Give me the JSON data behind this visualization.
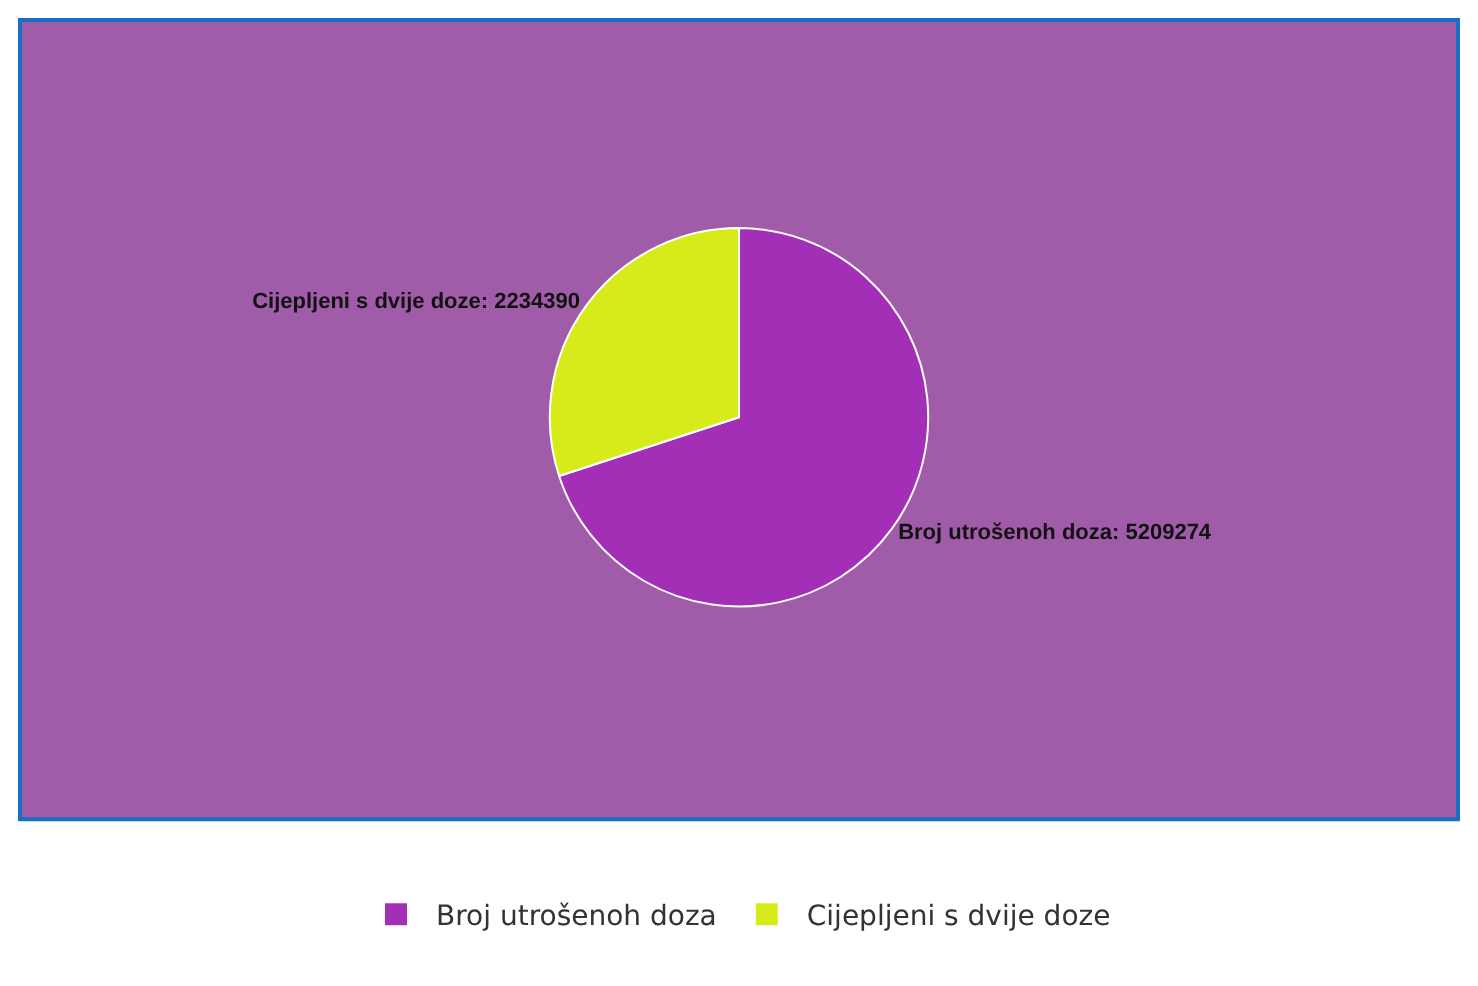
{
  "chart_data": {
    "type": "pie",
    "categories": [
      "Broj utrošenoh doza",
      "Cijepljeni s dvije doze"
    ],
    "values": [
      5209274,
      2234390
    ],
    "colors": [
      "#a22fb5",
      "#d7eb1a"
    ],
    "value_labels": [
      "Broj utrošenoh doza: 5209274",
      "Cijepljeni s dvije doze: 2234390"
    ],
    "legend": "bottom"
  }
}
